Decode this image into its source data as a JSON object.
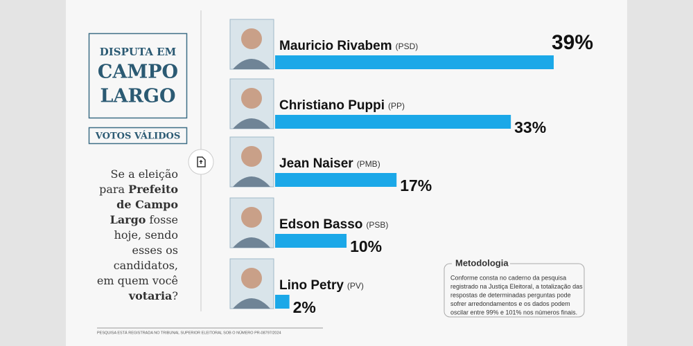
{
  "panel": {
    "title_top": "DISPUTA EM",
    "title_line1": "CAMPO",
    "title_line2": "LARGO",
    "subtitle": "VOTOS VÁLIDOS",
    "question": [
      [
        {
          "text": "Se a eleição",
          "bold": false
        }
      ],
      [
        {
          "text": "para ",
          "bold": false
        },
        {
          "text": "Prefeito",
          "bold": true
        }
      ],
      [
        {
          "text": "de Campo",
          "bold": true
        }
      ],
      [
        {
          "text": "Largo",
          "bold": true
        },
        {
          "text": " fosse",
          "bold": false
        }
      ],
      [
        {
          "text": "hoje,  sendo",
          "bold": false
        }
      ],
      [
        {
          "text": "esses os",
          "bold": false
        }
      ],
      [
        {
          "text": "candidatos,",
          "bold": false
        }
      ],
      [
        {
          "text": "em quem você",
          "bold": false
        }
      ],
      [
        {
          "text": "votaria",
          "bold": true
        },
        {
          "text": "?",
          "bold": false
        }
      ]
    ]
  },
  "chart_data": {
    "type": "bar",
    "orientation": "horizontal",
    "color": "#1ba8e8",
    "categories": [
      "Mauricio Rivabem",
      "Christiano Puppi",
      "Jean Naiser",
      "Edson Basso",
      "Lino Petry"
    ],
    "parties": [
      "(PSD)",
      "(PP)",
      "(PMB)",
      "(PSB)",
      "(PV)"
    ],
    "values": [
      39,
      33,
      17,
      10,
      2
    ],
    "value_labels": [
      "39%",
      "33%",
      "17%",
      "10%",
      "2%"
    ]
  },
  "methodology": {
    "title": "Metodologia",
    "lines": [
      "Conforme consta no caderno da pesquisa",
      "registrado na Justiça Eleitoral, a totalização das",
      "respostas de determinadas perguntas pode",
      "sofrer arredondamentos e os dados podem",
      "oscilar entre 99% e 101% nos números finais."
    ]
  },
  "footer": "PESQUISA ESTÁ REGISTRADA NO TRIBUNAL SUPERIOR ELEITORAL SOB O NÚMERO PR-08797/2024"
}
